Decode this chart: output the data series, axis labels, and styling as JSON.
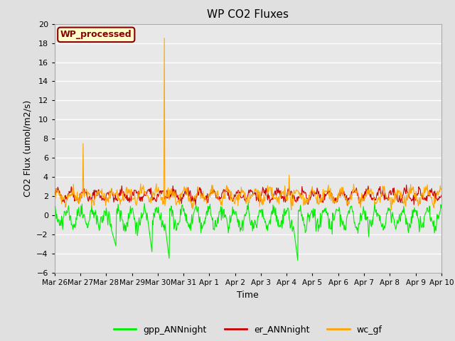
{
  "title": "WP CO2 Fluxes",
  "xlabel": "Time",
  "ylabel": "CO2 Flux (umol/m2/s)",
  "ylim": [
    -6,
    20
  ],
  "yticks": [
    -6,
    -4,
    -2,
    0,
    2,
    4,
    6,
    8,
    10,
    12,
    14,
    16,
    18,
    20
  ],
  "x_tick_labels": [
    "Mar 26",
    "Mar 27",
    "Mar 28",
    "Mar 29",
    "Mar 30",
    "Mar 31",
    "Apr 1",
    "Apr 2",
    "Apr 3",
    "Apr 4",
    "Apr 5",
    "Apr 6",
    "Apr 7",
    "Apr 8",
    "Apr 9",
    "Apr 10"
  ],
  "watermark_text": "WP_processed",
  "watermark_color": "#8B0000",
  "watermark_bg": "#FFFFCC",
  "watermark_border": "#8B0000",
  "line_gpp_color": "#00EE00",
  "line_er_color": "#CC0000",
  "line_wc_color": "#FFA500",
  "legend_labels": [
    "gpp_ANNnight",
    "er_ANNnight",
    "wc_gf"
  ],
  "plot_bg_color": "#E8E8E8",
  "fig_bg_color": "#E0E0E0",
  "grid_color": "#FFFFFF",
  "seed": 42,
  "n_steps": 720
}
